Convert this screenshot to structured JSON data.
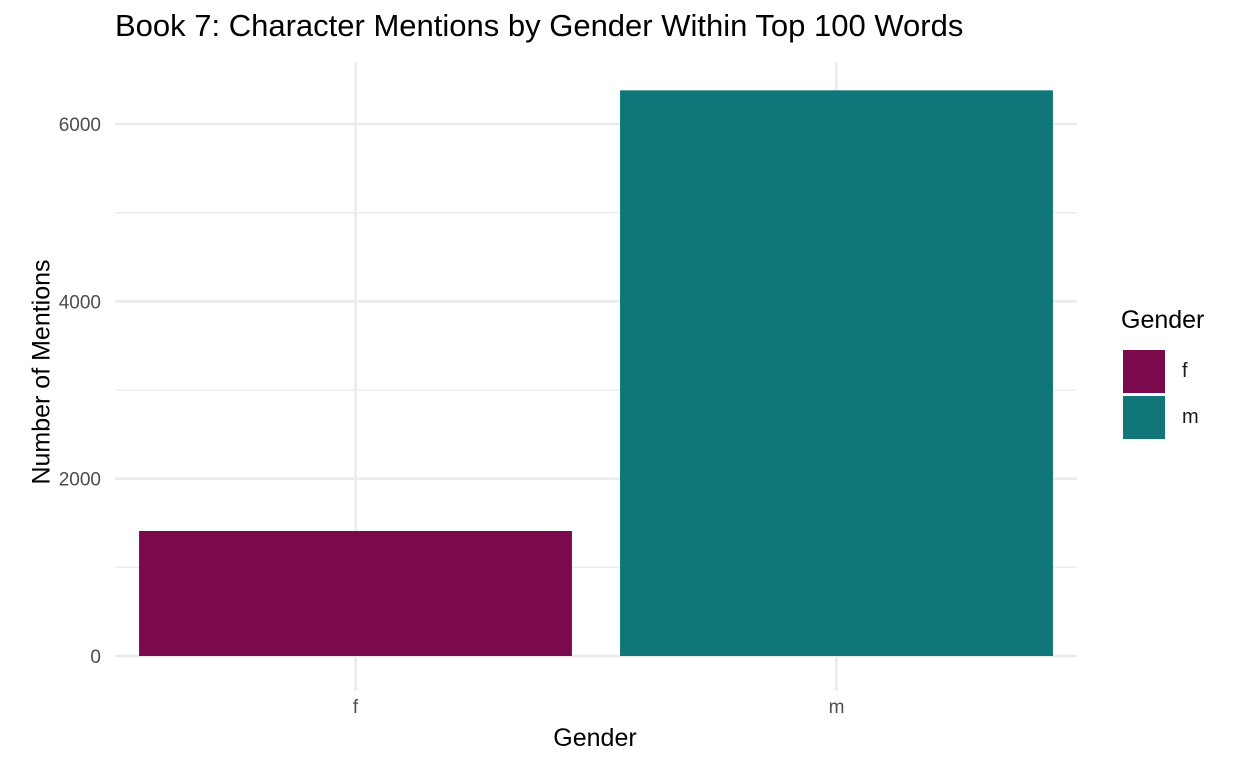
{
  "chart_data": {
    "type": "bar",
    "title": "Book 7: Character Mentions by Gender Within Top 100 Words",
    "xlabel": "Gender",
    "ylabel": "Number of Mentions",
    "categories": [
      "f",
      "m"
    ],
    "values": [
      1410,
      6380
    ],
    "colors": [
      "#7A0A4C",
      "#10767A"
    ],
    "ylim": [
      0,
      6760
    ],
    "yticks": [
      0,
      2000,
      4000,
      6000
    ],
    "ytick_labels": [
      "0",
      "2000",
      "4000",
      "6000"
    ],
    "grid": true,
    "legend": {
      "title": "Gender",
      "position": "right",
      "entries": [
        "f",
        "m"
      ]
    }
  }
}
